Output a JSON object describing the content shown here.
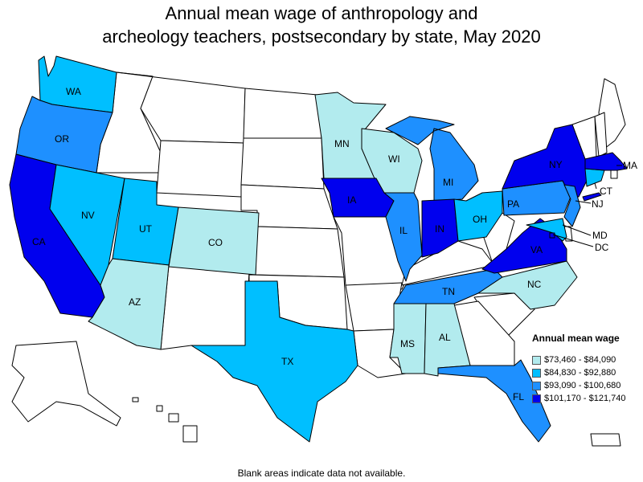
{
  "title": {
    "line1": "Annual mean wage of anthropology and",
    "line2": "archeology teachers, postsecondary by state, May 2020"
  },
  "legend": {
    "title": "Annual mean wage",
    "items": [
      {
        "label": "$73,460 - $84,090",
        "color": "#b2ebee"
      },
      {
        "label": "$84,830 - $92,880",
        "color": "#00bfff"
      },
      {
        "label": "$93,090 - $100,680",
        "color": "#1e90ff"
      },
      {
        "label": "$101,170 - $121,740",
        "color": "#0000ee"
      }
    ]
  },
  "footnote": "Blank areas indicate data not available.",
  "states": [
    {
      "code": "WA",
      "tier": 1
    },
    {
      "code": "OR",
      "tier": 2
    },
    {
      "code": "CA",
      "tier": 3
    },
    {
      "code": "NV",
      "tier": 1
    },
    {
      "code": "UT",
      "tier": 1
    },
    {
      "code": "AZ",
      "tier": 0
    },
    {
      "code": "CO",
      "tier": 0
    },
    {
      "code": "TX",
      "tier": 1
    },
    {
      "code": "MN",
      "tier": 0
    },
    {
      "code": "WI",
      "tier": 0
    },
    {
      "code": "IA",
      "tier": 3
    },
    {
      "code": "IL",
      "tier": 2
    },
    {
      "code": "MI",
      "tier": 2
    },
    {
      "code": "IN",
      "tier": 3
    },
    {
      "code": "OH",
      "tier": 1
    },
    {
      "code": "MS",
      "tier": 0
    },
    {
      "code": "AL",
      "tier": 0
    },
    {
      "code": "TN",
      "tier": 2
    },
    {
      "code": "FL",
      "tier": 2
    },
    {
      "code": "NC",
      "tier": 0
    },
    {
      "code": "VA",
      "tier": 3
    },
    {
      "code": "PA",
      "tier": 2
    },
    {
      "code": "NY",
      "tier": 3
    },
    {
      "code": "NJ",
      "tier": 2
    },
    {
      "code": "CT",
      "tier": 1
    },
    {
      "code": "MA",
      "tier": 3
    },
    {
      "code": "MD",
      "tier": 1
    },
    {
      "code": "DC",
      "tier": 3
    }
  ]
}
